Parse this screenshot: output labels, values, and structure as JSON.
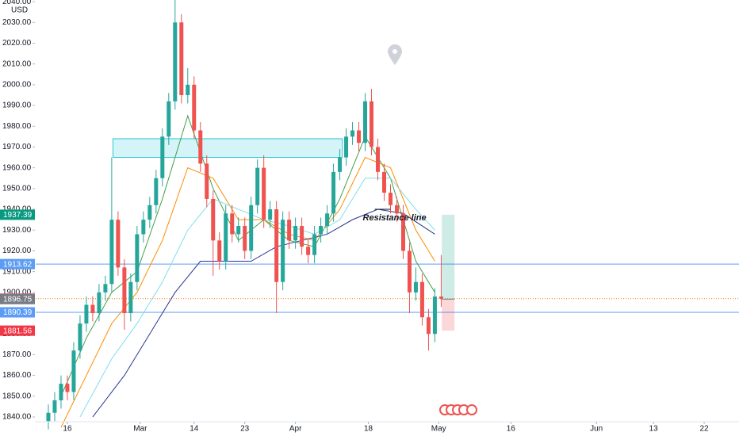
{
  "chart_data": {
    "type": "candlestick",
    "currency": "USD",
    "up_color": "#26a69a",
    "down_color": "#ef5350",
    "x": [
      2,
      3,
      4,
      5,
      6,
      7,
      8,
      9,
      10,
      11,
      12,
      13,
      14,
      15,
      16,
      17,
      18,
      19,
      20,
      21,
      22,
      23,
      24,
      25,
      26,
      27,
      28,
      29,
      30,
      31,
      32,
      33,
      34,
      35,
      36,
      37,
      38,
      39,
      40,
      41,
      42,
      43,
      44,
      45,
      46,
      47,
      48,
      49,
      50,
      51,
      52,
      53,
      54,
      55,
      56,
      57,
      58,
      59,
      60,
      61,
      62,
      63,
      64
    ],
    "open": [
      1838,
      1842,
      1848,
      1856,
      1852,
      1872,
      1885,
      1894,
      1890,
      1900,
      1904,
      1935,
      1912,
      1890,
      1905,
      1928,
      1935,
      1942,
      1955,
      1975,
      1992,
      2030,
      1995,
      2000,
      1978,
      1962,
      1945,
      1925,
      1915,
      1938,
      1928,
      1932,
      1920,
      1942,
      1960,
      1935,
      1940,
      1905,
      1935,
      1925,
      1932,
      1922,
      1918,
      1928,
      1932,
      1938,
      1958,
      1965,
      1975,
      1978,
      1972,
      1992,
      1970,
      1958,
      1948,
      1942,
      1938,
      1920,
      1900,
      1905,
      1888,
      1880,
      1898
    ],
    "high": [
      1846,
      1852,
      1860,
      1860,
      1876,
      1889,
      1898,
      1898,
      1904,
      1908,
      1965,
      1939,
      1916,
      1909,
      1932,
      1939,
      1946,
      1959,
      1979,
      1996,
      2042,
      2034,
      2008,
      2004,
      1982,
      1966,
      1949,
      1929,
      1942,
      1942,
      1936,
      1936,
      1946,
      1964,
      1966,
      1944,
      1944,
      1939,
      1939,
      1936,
      1936,
      1926,
      1932,
      1936,
      1942,
      1962,
      1969,
      1979,
      1982,
      1982,
      1996,
      1998,
      1974,
      1962,
      1952,
      1946,
      1942,
      1924,
      1912,
      1909,
      1892,
      1902,
      1918
    ],
    "low": [
      1834,
      1838,
      1844,
      1848,
      1848,
      1868,
      1881,
      1886,
      1886,
      1896,
      1900,
      1908,
      1882,
      1886,
      1901,
      1924,
      1931,
      1938,
      1951,
      1971,
      1988,
      1991,
      1991,
      1974,
      1958,
      1941,
      1908,
      1911,
      1911,
      1924,
      1924,
      1916,
      1916,
      1938,
      1931,
      1931,
      1890,
      1901,
      1921,
      1921,
      1918,
      1914,
      1914,
      1924,
      1928,
      1934,
      1954,
      1961,
      1971,
      1968,
      1968,
      1966,
      1954,
      1944,
      1938,
      1934,
      1916,
      1890,
      1896,
      1884,
      1872,
      1876,
      1893
    ],
    "close": [
      1842,
      1848,
      1856,
      1852,
      1872,
      1885,
      1894,
      1890,
      1900,
      1904,
      1935,
      1912,
      1890,
      1905,
      1928,
      1935,
      1942,
      1955,
      1975,
      1992,
      2030,
      1995,
      2000,
      1978,
      1962,
      1945,
      1925,
      1915,
      1938,
      1928,
      1932,
      1920,
      1942,
      1960,
      1935,
      1940,
      1905,
      1935,
      1925,
      1932,
      1922,
      1918,
      1928,
      1932,
      1938,
      1958,
      1965,
      1975,
      1978,
      1972,
      1992,
      1970,
      1958,
      1948,
      1942,
      1938,
      1920,
      1900,
      1905,
      1888,
      1880,
      1898,
      1897
    ],
    "ma": [
      {
        "color": "#43a047",
        "x": [
          4,
          8,
          12,
          16,
          20,
          24,
          28,
          32,
          36,
          40,
          44,
          48,
          52,
          56,
          60,
          63
        ],
        "values": [
          1850,
          1878,
          1900,
          1910,
          1945,
          1985,
          1950,
          1925,
          1935,
          1925,
          1922,
          1945,
          1975,
          1955,
          1915,
          1900
        ]
      },
      {
        "color": "#fb8c00",
        "x": [
          4,
          8,
          12,
          16,
          20,
          24,
          28,
          32,
          36,
          40,
          44,
          48,
          52,
          56,
          60,
          63
        ],
        "values": [
          1835,
          1860,
          1885,
          1900,
          1925,
          1960,
          1955,
          1935,
          1935,
          1928,
          1925,
          1940,
          1965,
          1960,
          1930,
          1915
        ]
      },
      {
        "color": "#80deea",
        "x": [
          7,
          12,
          16,
          20,
          24,
          28,
          32,
          36,
          40,
          44,
          48,
          52,
          56,
          60,
          63
        ],
        "values": [
          1840,
          1868,
          1885,
          1905,
          1930,
          1945,
          1940,
          1935,
          1932,
          1928,
          1935,
          1955,
          1955,
          1940,
          1930
        ]
      },
      {
        "color": "#283593",
        "x": [
          9,
          14,
          18,
          22,
          26,
          30,
          34,
          38,
          42,
          46,
          50,
          54,
          58,
          63
        ],
        "values": [
          1840,
          1860,
          1880,
          1900,
          1915,
          1915,
          1915,
          1922,
          1925,
          1928,
          1935,
          1940,
          1938,
          1928
        ]
      }
    ],
    "zone": {
      "x": [
        12.2,
        48.4
      ],
      "y": [
        1965,
        1974
      ],
      "color": "#26c6da"
    },
    "resistance": {
      "text": "Resistance line",
      "x": [
        53.5,
        56
      ],
      "value": 1940
    },
    "levels": [
      {
        "value": 1913.62,
        "color": "#5b9cf6",
        "label_color": "#5b9cf6",
        "line": "solid"
      },
      {
        "value": 1896.98,
        "color": "#f57c00",
        "label_color": "#ef5350",
        "line": "dotted"
      },
      {
        "value": 1890.39,
        "color": "#5b9cf6",
        "label_color": "#5b9cf6",
        "line": "solid"
      }
    ],
    "position": {
      "x": [
        64.1,
        66.1
      ],
      "target": 1937.39,
      "entry": 1896.75,
      "stop": 1881.56,
      "target_color": "#089981",
      "entry_color": "#787b86",
      "stop_color": "#f23645"
    },
    "xlim": [
      0,
      111
    ],
    "ylim": [
      1837.7,
      2040.8
    ],
    "xticks": [
      {
        "value": 5,
        "label": "16"
      },
      {
        "value": 16.5,
        "label": "Mar"
      },
      {
        "value": 25,
        "label": "14"
      },
      {
        "value": 33,
        "label": "23"
      },
      {
        "value": 41,
        "label": "Apr"
      },
      {
        "value": 52.5,
        "label": "18"
      },
      {
        "value": 63.6,
        "label": "May"
      },
      {
        "value": 75,
        "label": "16"
      },
      {
        "value": 88.5,
        "label": "Jun"
      },
      {
        "value": 97.5,
        "label": "13"
      },
      {
        "value": 105.5,
        "label": "22"
      }
    ],
    "yticks": [
      {
        "value": 1840,
        "label": "1840.00"
      },
      {
        "value": 1850,
        "label": "1850.00"
      },
      {
        "value": 1860,
        "label": "1860.00"
      },
      {
        "value": 1870,
        "label": "1870.00"
      },
      {
        "value": 1880,
        "label": "1880.00"
      },
      {
        "value": 1890,
        "label": "1890.00"
      },
      {
        "value": 1900,
        "label": "1900.00"
      },
      {
        "value": 1910,
        "label": "1910.00"
      },
      {
        "value": 1920,
        "label": "1920.00"
      },
      {
        "value": 1930,
        "label": "1930.00"
      },
      {
        "value": 1940,
        "label": "1940.00"
      },
      {
        "value": 1950,
        "label": "1950.00"
      },
      {
        "value": 1960,
        "label": "1960.00"
      },
      {
        "value": 1970,
        "label": "1970.00"
      },
      {
        "value": 1980,
        "label": "1980.00"
      },
      {
        "value": 1990,
        "label": "1990.00"
      },
      {
        "value": 2000,
        "label": "2000.00"
      },
      {
        "value": 2010,
        "label": "2010.00"
      },
      {
        "value": 2020,
        "label": "2020.00"
      },
      {
        "value": 2030,
        "label": "2030.00"
      },
      {
        "value": 2040,
        "label": "2040.00"
      }
    ]
  }
}
